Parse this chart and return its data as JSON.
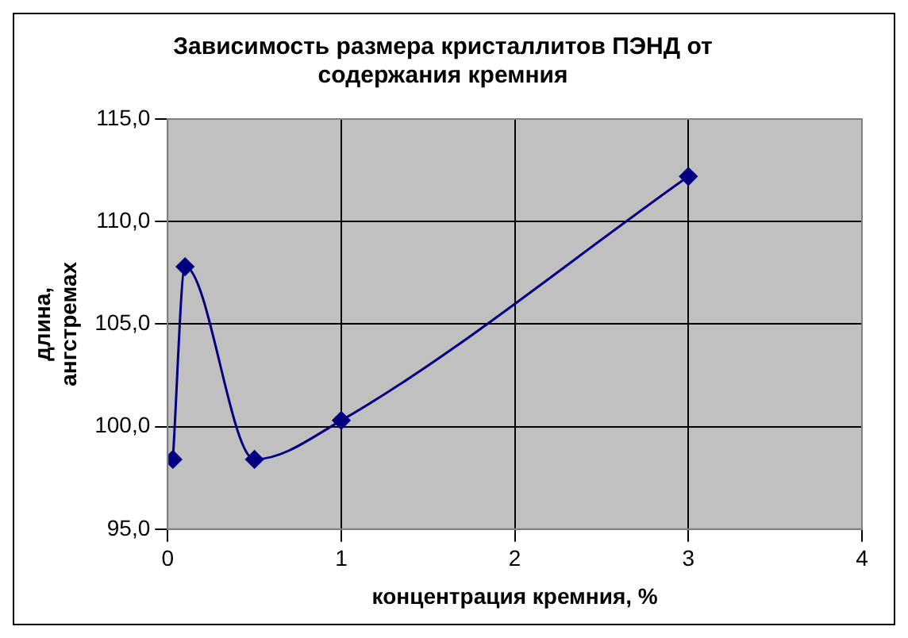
{
  "chart_data": {
    "type": "line",
    "title": "Зависимость размера кристаллитов ПЭНД от\nсодержания кремния",
    "xlabel": "концентрация кремния, %",
    "ylabel": "длина,\nангстремах",
    "x": [
      0.03,
      0.1,
      0.5,
      1,
      3
    ],
    "series": [
      {
        "color": "#000080",
        "values": [
          98.4,
          107.8,
          98.4,
          100.3,
          112.2
        ]
      }
    ],
    "xlim": [
      0,
      4
    ],
    "xticks": [
      0,
      1,
      2,
      3,
      4
    ],
    "ylim": [
      95,
      115
    ],
    "yticks": [
      {
        "value": 95,
        "label": "95,0"
      },
      {
        "value": 100,
        "label": "100,0"
      },
      {
        "value": 105,
        "label": "105,0"
      },
      {
        "value": 110,
        "label": "110,0"
      },
      {
        "value": 115,
        "label": "115,0"
      }
    ],
    "grid": true,
    "legend": false,
    "marker": "diamond",
    "line_style": "solid"
  }
}
